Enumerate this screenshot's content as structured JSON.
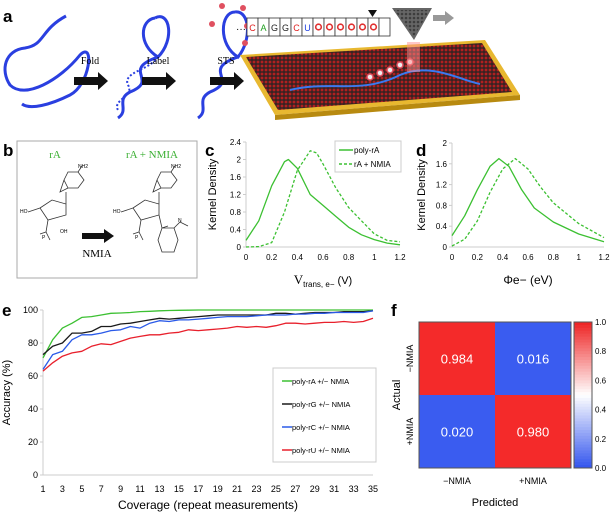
{
  "panels": {
    "a": "a",
    "b": "b",
    "c": "c",
    "d": "d",
    "e": "e",
    "f": "f"
  },
  "panel_a": {
    "steps": [
      "Fold",
      "Label",
      "STS"
    ],
    "sequence_prefix": "···",
    "sequence": [
      {
        "letter": "C",
        "color": "#e02020"
      },
      {
        "letter": "A",
        "color": "#20a020"
      },
      {
        "letter": "G",
        "color": "#222222"
      },
      {
        "letter": "G",
        "color": "#222222"
      },
      {
        "letter": "C",
        "color": "#e02020"
      },
      {
        "letter": "U",
        "color": "#2040e0"
      }
    ],
    "labeled_count": 6,
    "strand_color": "#2a3fe0",
    "substrate_color": "#e8b830",
    "label_color": "#e05060"
  },
  "panel_b": {
    "left_title": "rA",
    "right_title": "rA + NMIA",
    "reagent": "NMIA",
    "title_color": "#3cb034",
    "atoms": {
      "nh2": "NH2",
      "n": "N",
      "ho": "HO",
      "oh": "OH",
      "o": "O",
      "p": "P",
      "nh": "N",
      "h": "H"
    }
  },
  "chart_data": [
    {
      "id": "c",
      "type": "line",
      "xlabel": "Vtrans, e− (V)",
      "xlabel_main": "V",
      "xlabel_sub": "trans, e−",
      "xlabel_unit": " (V)",
      "ylabel": "Kernel Density",
      "xlim": [
        0,
        1.2
      ],
      "ylim": [
        0,
        2.4
      ],
      "xticks": [
        "0",
        "0.2",
        "0.4",
        "0.6",
        "0.8",
        "1",
        "1.2"
      ],
      "yticks": [
        "0",
        "0.4",
        "0.8",
        "1.2",
        "1.6",
        "2",
        "2.4"
      ],
      "legend": "top-right",
      "color": "#3cc032",
      "series": [
        {
          "name": "poly-rA",
          "style": "solid",
          "x": [
            0,
            0.1,
            0.2,
            0.3,
            0.33,
            0.4,
            0.5,
            0.6,
            0.7,
            0.8,
            0.9,
            1.0,
            1.1,
            1.2
          ],
          "y": [
            0.15,
            0.6,
            1.4,
            1.95,
            2.0,
            1.8,
            1.2,
            0.95,
            0.7,
            0.45,
            0.28,
            0.17,
            0.09,
            0.05
          ]
        },
        {
          "name": "rA + NMIA",
          "style": "dashed",
          "x": [
            0,
            0.1,
            0.2,
            0.3,
            0.4,
            0.5,
            0.55,
            0.6,
            0.7,
            0.8,
            0.9,
            1.0,
            1.1,
            1.2
          ],
          "y": [
            0,
            0.01,
            0.1,
            0.8,
            1.75,
            2.2,
            2.15,
            1.9,
            1.35,
            0.9,
            0.6,
            0.3,
            0.15,
            0.12
          ]
        }
      ]
    },
    {
      "id": "d",
      "type": "line",
      "xlabel": "Φe− (eV)",
      "xlabel_main": "Φ",
      "xlabel_sub": "e−",
      "xlabel_unit": " (eV)",
      "ylabel": "Kernel Density",
      "xlim": [
        0,
        1.2
      ],
      "ylim": [
        0,
        2
      ],
      "xticks": [
        "0",
        "0.2",
        "0.4",
        "0.6",
        "0.8",
        "1",
        "1.2"
      ],
      "yticks": [
        "0",
        "0.4",
        "0.8",
        "1.2",
        "1.6",
        "2"
      ],
      "color": "#3cc032",
      "series": [
        {
          "style": "solid",
          "x": [
            0,
            0.1,
            0.2,
            0.3,
            0.37,
            0.45,
            0.55,
            0.65,
            0.8,
            1.0,
            1.2
          ],
          "y": [
            0.22,
            0.6,
            1.1,
            1.55,
            1.7,
            1.55,
            1.1,
            0.75,
            0.48,
            0.25,
            0.1
          ]
        },
        {
          "style": "dashed",
          "x": [
            0,
            0.1,
            0.2,
            0.3,
            0.4,
            0.5,
            0.6,
            0.7,
            0.8,
            1.0,
            1.2
          ],
          "y": [
            0.02,
            0.15,
            0.5,
            1.05,
            1.5,
            1.7,
            1.5,
            1.15,
            0.85,
            0.45,
            0.18
          ]
        }
      ]
    },
    {
      "id": "e",
      "type": "line",
      "xlabel": "Coverage (repeat measurements)",
      "ylabel": "Accuracy  (%)",
      "xlim": [
        1,
        35
      ],
      "ylim": [
        0,
        100
      ],
      "xticks": [
        "1",
        "3",
        "5",
        "7",
        "9",
        "11",
        "13",
        "15",
        "17",
        "19",
        "21",
        "23",
        "25",
        "27",
        "29",
        "31",
        "33",
        "35"
      ],
      "yticks": [
        "0",
        "20",
        "40",
        "60",
        "80",
        "100"
      ],
      "legend": "bottom-right",
      "series": [
        {
          "name": "poly-rA +/− NMIA",
          "color": "#3cc032",
          "y": [
            71,
            82,
            89,
            92,
            95.5,
            96,
            97,
            98,
            98.2,
            98.5,
            99,
            99.2,
            99.5,
            99.7,
            99.8,
            99.9,
            100,
            100,
            100,
            100,
            100,
            100,
            100,
            100,
            100,
            100,
            100,
            100,
            100,
            100,
            100,
            100,
            100,
            100,
            100
          ]
        },
        {
          "name": "poly-rG +/− NMIA",
          "color": "#1a1a1a",
          "y": [
            73,
            78,
            80,
            86,
            86,
            87,
            90,
            90,
            91.5,
            92,
            93,
            94,
            95,
            94.5,
            95,
            95.5,
            96,
            96.5,
            97,
            97,
            97,
            97,
            97,
            97,
            98,
            98,
            97.5,
            98,
            98.5,
            98.5,
            98.5,
            99,
            99,
            99,
            99.5
          ]
        },
        {
          "name": "poly-rC +/− NMIA",
          "color": "#2a5ae8",
          "y": [
            64,
            73,
            75,
            82,
            85,
            85,
            86,
            87.5,
            88,
            90,
            89,
            92,
            93.5,
            93,
            94,
            94,
            94.5,
            95,
            95.5,
            96,
            96,
            96,
            96.5,
            97,
            97,
            97,
            97.5,
            97.5,
            98,
            98,
            98.5,
            98.5,
            98.5,
            98.5,
            99.5
          ]
        },
        {
          "name": "poly-rU +/− NMIA",
          "color": "#e8202c",
          "y": [
            63,
            68,
            72,
            74,
            75,
            78,
            79.5,
            79,
            81,
            83,
            84,
            85,
            85,
            86,
            86.5,
            88,
            87.5,
            88,
            88.5,
            89,
            90,
            89.5,
            90,
            89.5,
            90.5,
            92,
            92,
            91.5,
            92,
            92.5,
            92.5,
            93,
            92.5,
            93,
            95
          ]
        }
      ]
    },
    {
      "id": "f",
      "type": "heatmap",
      "xlabel": "Predicted",
      "ylabel": "Actual",
      "x_categories": [
        "−NMIA",
        "+NMIA"
      ],
      "y_categories": [
        "−NMIA",
        "+NMIA"
      ],
      "values": [
        [
          "0.984",
          "0.016"
        ],
        [
          "0.020",
          "0.980"
        ]
      ],
      "colorbar": {
        "range": [
          0,
          1
        ],
        "ticks": [
          "0.0",
          "0.2",
          "0.4",
          "0.6",
          "0.8",
          "1.0"
        ],
        "low": "#3355ee",
        "mid": "#ffffff",
        "high": "#ee2222"
      }
    }
  ]
}
